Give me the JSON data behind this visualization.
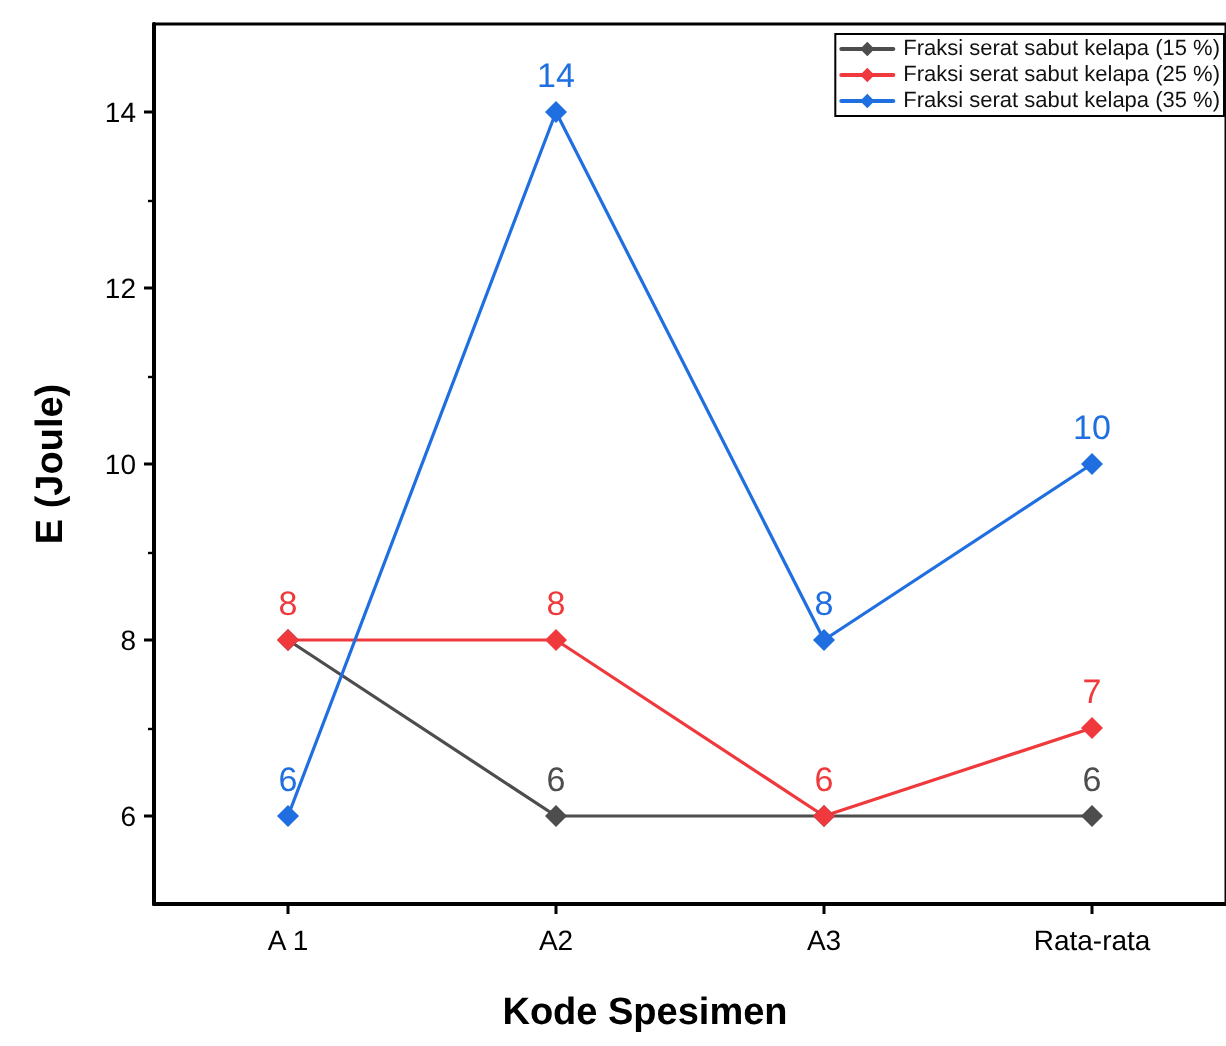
{
  "chart_data": {
    "type": "line",
    "xlabel": "Kode Spesimen",
    "ylabel": "E (Joule)",
    "categories": [
      "A 1",
      "A2",
      "A3",
      "Rata-rata"
    ],
    "series": [
      {
        "name": "Fraksi serat sabut kelapa (15 %)",
        "color": "#4d4d4d",
        "values": [
          8,
          6,
          6,
          6
        ],
        "value_labels": [
          null,
          "6",
          null,
          "6"
        ]
      },
      {
        "name": "Fraksi serat sabut kelapa (25 %)",
        "color": "#f0393c",
        "values": [
          8,
          8,
          6,
          7
        ],
        "value_labels": [
          "8",
          "8",
          "6",
          "7"
        ]
      },
      {
        "name": "Fraksi serat sabut kelapa (35 %)",
        "color": "#1f6fe0",
        "values": [
          6,
          14,
          8,
          10
        ],
        "value_labels": [
          "6",
          "14",
          "8",
          "10"
        ]
      }
    ],
    "ylim": [
      5,
      15
    ],
    "yticks": [
      6,
      8,
      10,
      12,
      14
    ],
    "legend": "top right",
    "marker": "diamond",
    "line_style": "solid",
    "grid": false
  }
}
